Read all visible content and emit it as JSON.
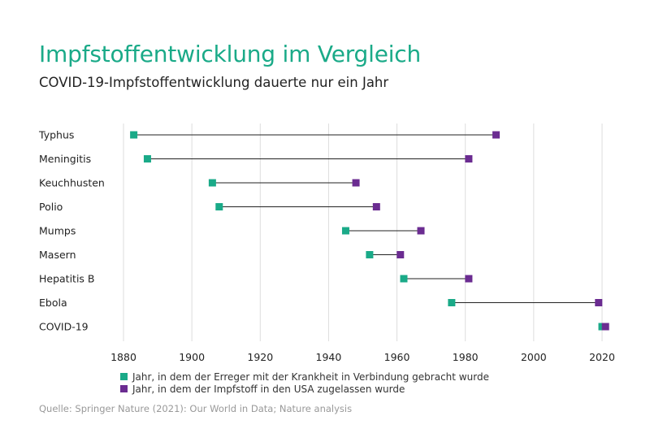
{
  "title": "Impfstoffentwicklung im Vergleich",
  "subtitle": "COVID-19-Impfstoffentwicklung dauerte nur ein Jahr",
  "source": "Quelle: Springer Nature (2021): Our World in Data; Nature analysis",
  "colors": {
    "discovered": "#1aaa88",
    "approved": "#6b2c91",
    "connector": "#222222",
    "grid": "#dddddd"
  },
  "chart_data": {
    "type": "dumbbell",
    "categories": [
      "Typhus",
      "Meningitis",
      "Keuchhusten",
      "Polio",
      "Mumps",
      "Masern",
      "Hepatitis B",
      "Ebola",
      "COVID-19"
    ],
    "series": [
      {
        "name": "Jahr, in dem der Erreger mit der Krankheit in Verbindung gebracht wurde",
        "values": [
          1883,
          1887,
          1906,
          1908,
          1945,
          1952,
          1962,
          1976,
          2020
        ]
      },
      {
        "name": "Jahr, in dem der Impfstoff in den USA zugelassen wurde",
        "values": [
          1989,
          1981,
          1948,
          1954,
          1967,
          1961,
          1981,
          2019,
          2021
        ]
      }
    ],
    "xticks": [
      "1880",
      "1900",
      "1920",
      "1940",
      "1960",
      "1980",
      "2000",
      "2020"
    ],
    "xlim": [
      1880,
      2020
    ],
    "grid": true,
    "legend_position": "bottom-left"
  }
}
